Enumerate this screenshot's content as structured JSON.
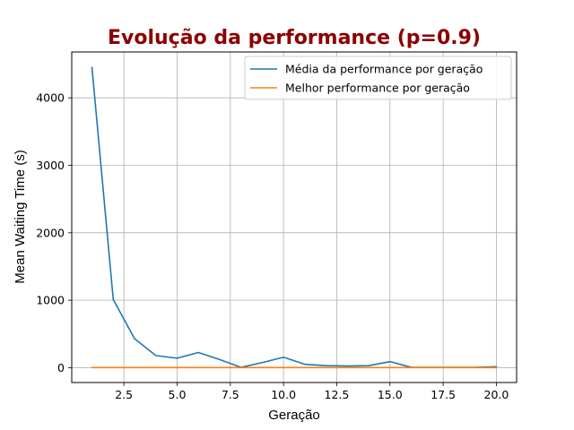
{
  "chart_data": {
    "type": "line",
    "title": "Evolução da performance (p=0.9)",
    "title_color": "#8b0000",
    "xlabel": "Geração",
    "ylabel": "Mean Waiting Time (s)",
    "xlim": [
      0.05,
      20.95
    ],
    "ylim": [
      -220,
      4680
    ],
    "xticks": [
      2.5,
      5.0,
      7.5,
      10.0,
      12.5,
      15.0,
      17.5,
      20.0
    ],
    "xtick_labels": [
      "2.5",
      "5.0",
      "7.5",
      "10.0",
      "12.5",
      "15.0",
      "17.5",
      "20.0"
    ],
    "yticks": [
      0,
      1000,
      2000,
      3000,
      4000
    ],
    "ytick_labels": [
      "0",
      "1000",
      "2000",
      "3000",
      "4000"
    ],
    "grid": true,
    "legend_position": "top-right",
    "x": [
      1,
      2,
      3,
      4,
      5,
      6,
      7,
      8,
      9,
      10,
      11,
      12,
      13,
      14,
      15,
      16,
      17,
      18,
      19,
      20
    ],
    "series": [
      {
        "name": "Média da performance por geração",
        "color": "#1f77b4",
        "values": [
          4450,
          1010,
          430,
          180,
          140,
          225,
          120,
          5,
          75,
          155,
          50,
          30,
          25,
          30,
          90,
          5,
          5,
          5,
          5,
          15
        ]
      },
      {
        "name": "Melhor performance por geração",
        "color": "#ff7f0e",
        "values": [
          2,
          2,
          2,
          2,
          2,
          2,
          2,
          2,
          2,
          2,
          2,
          2,
          2,
          2,
          2,
          2,
          2,
          2,
          2,
          2
        ]
      }
    ]
  }
}
